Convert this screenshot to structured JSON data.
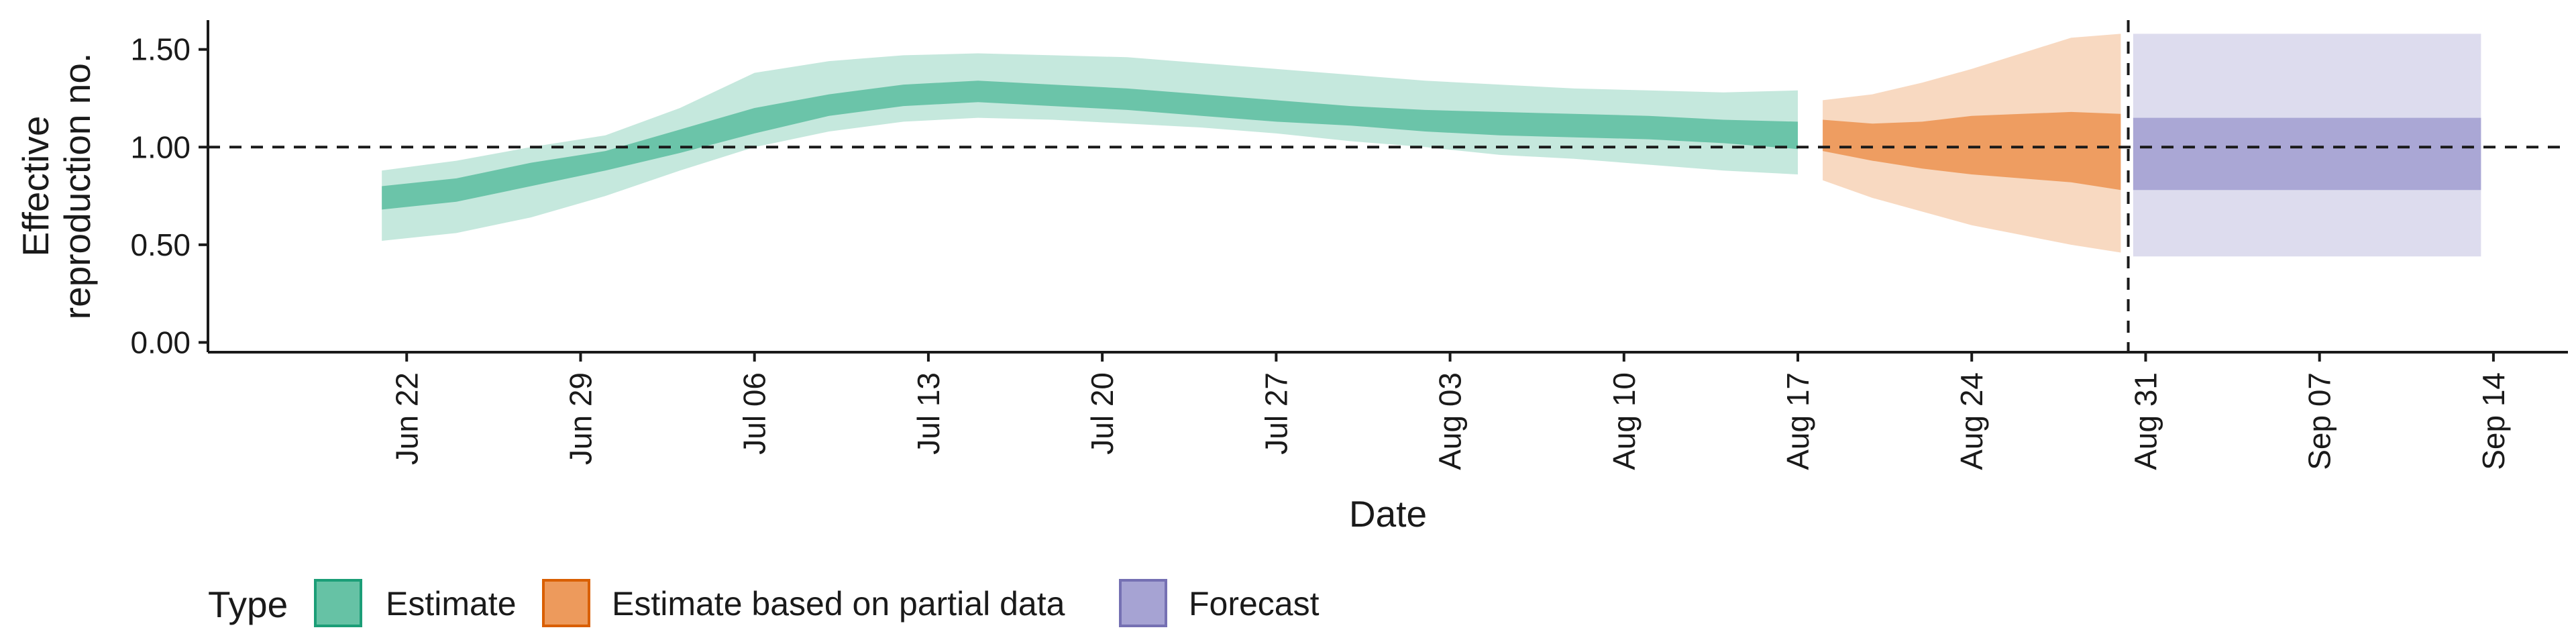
{
  "chart_data": {
    "type": "area",
    "xlabel": "Date",
    "ylabel_lines": [
      "Effective",
      "reproduction no."
    ],
    "ylim": [
      -0.05,
      1.65
    ],
    "yticks": [
      0.0,
      0.5,
      1.0,
      1.5
    ],
    "ytick_labels": [
      "0.00",
      "0.50",
      "1.00",
      "1.50"
    ],
    "xlim": [
      "2020-06-14",
      "2020-09-17"
    ],
    "xticks": [
      "2020-06-22",
      "2020-06-29",
      "2020-07-06",
      "2020-07-13",
      "2020-07-20",
      "2020-07-27",
      "2020-08-03",
      "2020-08-10",
      "2020-08-17",
      "2020-08-24",
      "2020-08-31",
      "2020-09-07",
      "2020-09-14"
    ],
    "xtick_labels": [
      "Jun 22",
      "Jun 29",
      "Jul 06",
      "Jul 13",
      "Jul 20",
      "Jul 27",
      "Aug 03",
      "Aug 10",
      "Aug 17",
      "Aug 24",
      "Aug 31",
      "Sep 07",
      "Sep 14"
    ],
    "reference_line_y": 1.0,
    "vertical_line_x": "2020-08-30",
    "legend": {
      "title": "Type",
      "position": "bottom-left",
      "items": [
        "Estimate",
        "Estimate based on partial data",
        "Forecast"
      ]
    },
    "series": [
      {
        "name": "Estimate",
        "fill": "#66c2a5",
        "edge": "#1b9e77",
        "x": [
          "2020-06-21",
          "2020-06-24",
          "2020-06-27",
          "2020-06-30",
          "2020-07-03",
          "2020-07-06",
          "2020-07-09",
          "2020-07-12",
          "2020-07-15",
          "2020-07-18",
          "2020-07-21",
          "2020-07-24",
          "2020-07-27",
          "2020-07-30",
          "2020-08-02",
          "2020-08-05",
          "2020-08-08",
          "2020-08-11",
          "2020-08-14",
          "2020-08-17"
        ],
        "lower90": [
          0.52,
          0.56,
          0.64,
          0.75,
          0.88,
          1.0,
          1.08,
          1.13,
          1.15,
          1.14,
          1.12,
          1.1,
          1.07,
          1.03,
          1.0,
          0.96,
          0.94,
          0.91,
          0.88,
          0.86
        ],
        "upper90": [
          0.88,
          0.93,
          1.0,
          1.06,
          1.2,
          1.38,
          1.44,
          1.47,
          1.48,
          1.47,
          1.46,
          1.43,
          1.4,
          1.37,
          1.34,
          1.32,
          1.3,
          1.29,
          1.28,
          1.29
        ],
        "lower50": [
          0.68,
          0.72,
          0.8,
          0.88,
          0.97,
          1.07,
          1.16,
          1.21,
          1.23,
          1.21,
          1.19,
          1.16,
          1.13,
          1.11,
          1.08,
          1.06,
          1.05,
          1.04,
          1.02,
          0.99
        ],
        "upper50": [
          0.8,
          0.84,
          0.92,
          0.98,
          1.09,
          1.2,
          1.27,
          1.32,
          1.34,
          1.32,
          1.3,
          1.27,
          1.24,
          1.21,
          1.19,
          1.18,
          1.17,
          1.16,
          1.14,
          1.13
        ]
      },
      {
        "name": "Estimate based on partial data",
        "fill": "#ed9a5c",
        "edge": "#d95f02",
        "x": [
          "2020-08-18",
          "2020-08-20",
          "2020-08-22",
          "2020-08-24",
          "2020-08-26",
          "2020-08-28",
          "2020-08-30"
        ],
        "lower90": [
          0.83,
          0.74,
          0.67,
          0.6,
          0.55,
          0.5,
          0.46
        ],
        "upper90": [
          1.24,
          1.27,
          1.33,
          1.4,
          1.48,
          1.56,
          1.58
        ],
        "lower50": [
          0.98,
          0.93,
          0.89,
          0.86,
          0.84,
          0.82,
          0.78
        ],
        "upper50": [
          1.14,
          1.12,
          1.13,
          1.16,
          1.17,
          1.18,
          1.17
        ]
      },
      {
        "name": "Forecast",
        "fill": "#a6a3d3",
        "edge": "#7570b3",
        "x": [
          "2020-08-31",
          "2020-09-13"
        ],
        "lower90": [
          0.44,
          0.44
        ],
        "upper90": [
          1.58,
          1.58
        ],
        "lower50": [
          0.78,
          0.78
        ],
        "upper50": [
          1.15,
          1.15
        ]
      }
    ]
  }
}
